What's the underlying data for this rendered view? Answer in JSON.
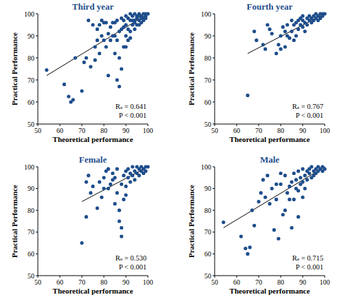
{
  "chart_data": [
    {
      "type": "scatter",
      "title": "Third year",
      "x_label": "Theoretical performance",
      "y_label": "Practical Performance",
      "color": "#1f4e8c",
      "marker": "circle",
      "xlim": [
        50,
        100
      ],
      "ylim": [
        50,
        100
      ],
      "xticks": [
        50,
        60,
        70,
        80,
        90,
        100
      ],
      "yticks": [
        50,
        60,
        70,
        80,
        90,
        100
      ],
      "annotations": [
        "Rₛ = 0.641",
        "P < 0.001"
      ],
      "trendline": {
        "x": [
          54,
          100
        ],
        "values": [
          72,
          100
        ]
      },
      "x": [
        54,
        62,
        64,
        65,
        66,
        67,
        70,
        71,
        72,
        73,
        74,
        75,
        76,
        77,
        78,
        79,
        80,
        80,
        81,
        82,
        83,
        84,
        85,
        85,
        86,
        86,
        87,
        87,
        88,
        88,
        89,
        89,
        90,
        90,
        91,
        91,
        92,
        92,
        93,
        93,
        94,
        94,
        95,
        95,
        96,
        96,
        97,
        97,
        98,
        98,
        99,
        99,
        100,
        90,
        88,
        86,
        84,
        92,
        94,
        96,
        97,
        89,
        91,
        93,
        95,
        87,
        85,
        83,
        82,
        81,
        79,
        78,
        77,
        76,
        90,
        92,
        94,
        96,
        98,
        99
      ],
      "values": [
        74.5,
        68,
        62.5,
        60,
        61,
        80,
        65,
        78,
        80,
        97,
        76,
        95,
        79,
        93,
        82,
        90,
        88,
        96,
        85,
        72,
        94,
        90,
        82,
        96,
        88,
        70,
        67,
        80,
        93,
        75,
        85,
        97,
        90,
        95,
        88,
        98,
        92,
        97,
        95,
        99,
        96,
        93,
        98,
        99,
        97,
        100,
        99,
        96,
        100,
        98,
        99,
        100,
        100,
        99,
        98,
        97,
        96,
        100,
        100,
        99,
        98,
        94,
        93,
        97,
        95,
        92,
        90,
        88,
        91,
        96,
        97,
        95,
        88,
        85,
        85,
        89,
        97,
        95,
        97,
        98
      ]
    },
    {
      "type": "scatter",
      "title": "Fourth year",
      "x_label": "Theoretical performance",
      "y_label": "Practical Performance",
      "color": "#1f4e8c",
      "marker": "circle",
      "xlim": [
        50,
        100
      ],
      "ylim": [
        50,
        100
      ],
      "xticks": [
        50,
        60,
        70,
        80,
        90,
        100
      ],
      "yticks": [
        50,
        60,
        70,
        80,
        90,
        100
      ],
      "annotations": [
        "Rₛ = 0.767",
        "P < 0.001"
      ],
      "trendline": {
        "x": [
          65,
          100
        ],
        "values": [
          82,
          100
        ]
      },
      "x": [
        65,
        68,
        69,
        72,
        73,
        74,
        75,
        76,
        78,
        79,
        80,
        80,
        81,
        82,
        83,
        84,
        85,
        86,
        87,
        87,
        88,
        88,
        89,
        89,
        90,
        90,
        91,
        91,
        92,
        92,
        93,
        93,
        94,
        94,
        95,
        95,
        96,
        96,
        97,
        97,
        98,
        98,
        99,
        99,
        100,
        85,
        83,
        86,
        82,
        90
      ],
      "values": [
        63,
        92,
        88,
        86,
        84,
        95,
        93,
        91,
        82,
        86,
        84,
        90,
        94,
        92,
        95,
        89,
        92,
        95,
        90,
        96,
        93,
        97,
        95,
        98,
        94,
        97,
        92,
        96,
        95,
        98,
        97,
        99,
        96,
        98,
        97,
        99,
        98,
        100,
        99,
        97,
        100,
        98,
        99,
        100,
        100,
        97,
        90,
        88,
        85,
        99
      ]
    },
    {
      "type": "scatter",
      "title": "Female",
      "x_label": "Theoretical performance",
      "y_label": "Practical Performance",
      "color": "#1f4e8c",
      "marker": "circle",
      "xlim": [
        50,
        100
      ],
      "ylim": [
        50,
        100
      ],
      "xticks": [
        50,
        60,
        70,
        80,
        90,
        100
      ],
      "yticks": [
        50,
        60,
        70,
        80,
        90,
        100
      ],
      "annotations": [
        "Rₛ = 0.530",
        "P < 0.001"
      ],
      "trendline": {
        "x": [
          70,
          100
        ],
        "values": [
          84,
          100
        ]
      },
      "x": [
        70,
        72,
        72,
        73,
        74,
        75,
        77,
        78,
        79,
        80,
        81,
        82,
        83,
        84,
        85,
        85,
        86,
        86,
        87,
        87,
        88,
        88,
        88,
        89,
        90,
        90,
        91,
        91,
        92,
        92,
        93,
        93,
        94,
        94,
        95,
        95,
        96,
        96,
        97,
        97,
        98,
        98,
        99,
        99,
        100,
        89,
        90,
        84,
        82,
        80
      ],
      "values": [
        65,
        77,
        93,
        96,
        88,
        91,
        81,
        93,
        86,
        95,
        98,
        90,
        92,
        97,
        83,
        95,
        88,
        99,
        75,
        80,
        68,
        72,
        92,
        96,
        91,
        98,
        95,
        99,
        93,
        97,
        96,
        100,
        94,
        98,
        97,
        100,
        96,
        99,
        98,
        100,
        99,
        97,
        100,
        98,
        100,
        85,
        87,
        94,
        99,
        90
      ]
    },
    {
      "type": "scatter",
      "title": "Male",
      "x_label": "Theoretical performance",
      "y_label": "Practical Performance",
      "color": "#1f4e8c",
      "marker": "circle",
      "xlim": [
        50,
        100
      ],
      "ylim": [
        50,
        100
      ],
      "xticks": [
        50,
        60,
        70,
        80,
        90,
        100
      ],
      "yticks": [
        50,
        60,
        70,
        80,
        90,
        100
      ],
      "annotations": [
        "Rₛ = 0.715",
        "P < 0.001"
      ],
      "trendline": {
        "x": [
          54,
          100
        ],
        "values": [
          72,
          100
        ]
      },
      "x": [
        54,
        62,
        64,
        65,
        66,
        67,
        68,
        70,
        71,
        72,
        73,
        74,
        75,
        76,
        77,
        78,
        79,
        80,
        81,
        82,
        83,
        84,
        85,
        85,
        86,
        86,
        87,
        87,
        88,
        88,
        89,
        89,
        90,
        90,
        91,
        91,
        92,
        92,
        93,
        93,
        94,
        94,
        95,
        95,
        96,
        96,
        97,
        97,
        98,
        99,
        99,
        100,
        80,
        84,
        90,
        78,
        82,
        88
      ],
      "values": [
        74.5,
        68,
        62.5,
        60,
        63,
        80,
        73,
        84,
        88,
        94,
        86,
        96,
        83,
        90,
        71,
        85,
        67,
        92,
        78,
        96,
        88,
        91,
        72,
        93,
        85,
        97,
        90,
        94,
        89,
        98,
        92,
        95,
        93,
        99,
        96,
        90,
        94,
        98,
        97,
        99,
        95,
        100,
        98,
        96,
        99,
        97,
        100,
        98,
        99,
        100,
        98,
        99,
        97,
        85,
        86,
        92,
        80,
        77
      ]
    }
  ]
}
